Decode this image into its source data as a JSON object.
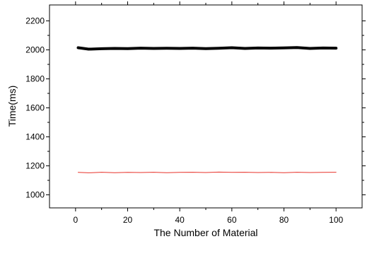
{
  "chart_data": {
    "type": "line",
    "title": "",
    "xlabel": "The Number of Material",
    "ylabel": "Time(ms)",
    "xlim": [
      -10,
      110
    ],
    "ylim": [
      910,
      2310
    ],
    "x_ticks": [
      0,
      20,
      40,
      60,
      80,
      100
    ],
    "y_ticks": [
      1000,
      1200,
      1400,
      1600,
      1800,
      2000,
      2200
    ],
    "grid": false,
    "legend": "none",
    "series": [
      {
        "color": "#000000",
        "line_width": 4,
        "x": [
          1,
          5,
          10,
          15,
          20,
          25,
          30,
          35,
          40,
          45,
          50,
          55,
          60,
          65,
          70,
          75,
          80,
          85,
          90,
          95,
          100
        ],
        "values": [
          2015,
          2005,
          2008,
          2010,
          2009,
          2012,
          2010,
          2011,
          2010,
          2012,
          2009,
          2011,
          2015,
          2010,
          2013,
          2012,
          2014,
          2016,
          2010,
          2013,
          2012
        ]
      },
      {
        "color": "#e8332b",
        "line_width": 1,
        "x": [
          1,
          5,
          10,
          15,
          20,
          25,
          30,
          35,
          40,
          45,
          50,
          55,
          60,
          65,
          70,
          75,
          80,
          85,
          90,
          95,
          100
        ],
        "values": [
          1155,
          1152,
          1156,
          1153,
          1155,
          1154,
          1156,
          1153,
          1155,
          1156,
          1154,
          1157,
          1155,
          1156,
          1154,
          1155,
          1153,
          1156,
          1154,
          1155,
          1156
        ]
      }
    ]
  }
}
